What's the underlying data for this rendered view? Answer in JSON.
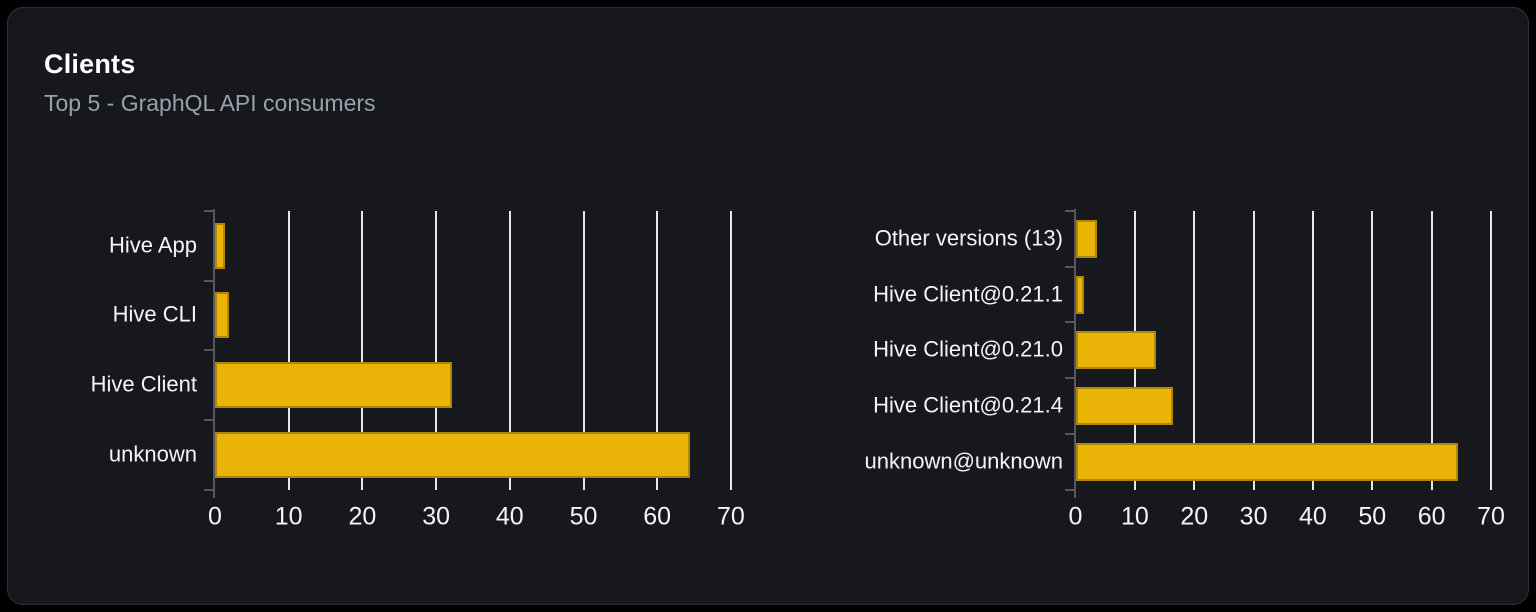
{
  "card": {
    "title": "Clients",
    "subtitle": "Top 5 - GraphQL API consumers"
  },
  "colors": {
    "page_bg": "#000000",
    "card_bg": "#16181d",
    "card_border": "#2c2f36",
    "bar": "#eab308",
    "gridline": "#e3e8ef",
    "axis": "#56585f",
    "title_text": "#ffffff",
    "subtitle_text": "#9ba1aa",
    "label_text": "#f4f5f7"
  },
  "chart_data": [
    {
      "type": "bar",
      "orientation": "horizontal",
      "categories": [
        "Hive App",
        "Hive CLI",
        "Hive Client",
        "unknown"
      ],
      "values": [
        1.4,
        1.9,
        32.2,
        64.4
      ],
      "x_ticks": [
        0,
        10,
        20,
        30,
        40,
        50,
        60,
        70
      ],
      "xlim": [
        0,
        70
      ],
      "xlabel": "",
      "ylabel": "",
      "grid": true,
      "legend": "none",
      "bar_color": "#eab308"
    },
    {
      "type": "bar",
      "orientation": "horizontal",
      "categories": [
        "Other versions (13)",
        "Hive Client@0.21.1",
        "Hive Client@0.21.0",
        "Hive Client@0.21.4",
        "unknown@unknown"
      ],
      "values": [
        3.7,
        1.5,
        13.6,
        16.4,
        64.4
      ],
      "x_ticks": [
        0,
        10,
        20,
        30,
        40,
        50,
        60,
        70
      ],
      "xlim": [
        0,
        70
      ],
      "xlabel": "",
      "ylabel": "",
      "grid": true,
      "legend": "none",
      "bar_color": "#eab308"
    }
  ]
}
